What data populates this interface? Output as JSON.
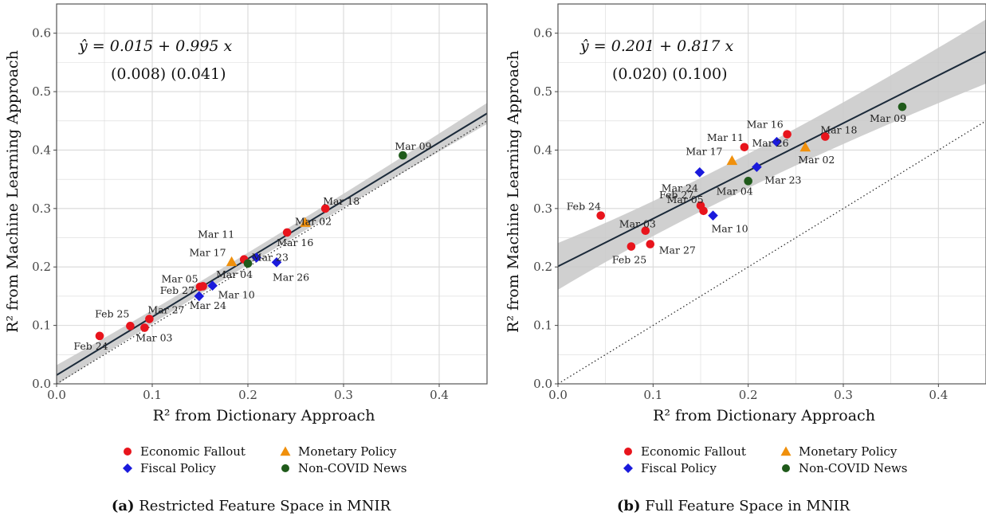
{
  "chart_data": [
    {
      "type": "scatter",
      "caption_tag": "(a)",
      "caption_text": "Restricted Feature Space in MNIR",
      "xlabel": "R² from Dictionary Approach",
      "ylabel": "R² from Machine Learning Approach",
      "xlim": [
        0,
        0.45
      ],
      "ylim": [
        0,
        0.65
      ],
      "xticks": [
        "0.0",
        "0.1",
        "0.2",
        "0.3",
        "0.4"
      ],
      "yticks": [
        "0.0",
        "0.1",
        "0.2",
        "0.3",
        "0.4",
        "0.5",
        "0.6"
      ],
      "equation": "ŷ = 0.015 + 0.995 x",
      "se": "(0.008)  (0.041)",
      "fit": {
        "intercept": 0.015,
        "slope": 0.995,
        "band_at_0": 0.017,
        "band_at_max": 0.018
      },
      "diagonal": true,
      "grid": true,
      "points": [
        {
          "label": "Feb 24",
          "x": 0.045,
          "y": 0.082,
          "group": "Economic Fallout"
        },
        {
          "label": "Feb 25",
          "x": 0.077,
          "y": 0.099,
          "group": "Economic Fallout"
        },
        {
          "label": "Mar 03",
          "x": 0.092,
          "y": 0.096,
          "group": "Economic Fallout"
        },
        {
          "label": "Mar 27",
          "x": 0.097,
          "y": 0.111,
          "group": "Economic Fallout"
        },
        {
          "label": "Mar 24",
          "x": 0.149,
          "y": 0.15,
          "group": "Fiscal Policy"
        },
        {
          "label": "Feb 27",
          "x": 0.15,
          "y": 0.166,
          "group": "Economic Fallout"
        },
        {
          "label": "Mar 05",
          "x": 0.153,
          "y": 0.167,
          "group": "Economic Fallout"
        },
        {
          "label": "Mar 10",
          "x": 0.163,
          "y": 0.168,
          "group": "Fiscal Policy"
        },
        {
          "label": "Mar 17",
          "x": 0.183,
          "y": 0.209,
          "group": "Monetary Policy"
        },
        {
          "label": "Mar 11",
          "x": 0.196,
          "y": 0.213,
          "group": "Economic Fallout"
        },
        {
          "label": "Mar 04",
          "x": 0.2,
          "y": 0.206,
          "group": "Non-COVID News"
        },
        {
          "label": "Mar 23",
          "x": 0.209,
          "y": 0.216,
          "group": "Fiscal Policy"
        },
        {
          "label": "Mar 26",
          "x": 0.23,
          "y": 0.208,
          "group": "Fiscal Policy"
        },
        {
          "label": "Mar 16",
          "x": 0.241,
          "y": 0.259,
          "group": "Economic Fallout"
        },
        {
          "label": "Mar 02",
          "x": 0.26,
          "y": 0.276,
          "group": "Monetary Policy"
        },
        {
          "label": "Mar 18",
          "x": 0.281,
          "y": 0.3,
          "group": "Economic Fallout"
        },
        {
          "label": "Mar 09",
          "x": 0.362,
          "y": 0.391,
          "group": "Non-COVID News"
        }
      ]
    },
    {
      "type": "scatter",
      "caption_tag": "(b)",
      "caption_text": "Full Feature Space in MNIR",
      "xlabel": "R² from Dictionary Approach",
      "ylabel": "R² from Machine Learning Approach",
      "xlim": [
        0,
        0.45
      ],
      "ylim": [
        0,
        0.65
      ],
      "xticks": [
        "0.0",
        "0.1",
        "0.2",
        "0.3",
        "0.4"
      ],
      "yticks": [
        "0.0",
        "0.1",
        "0.2",
        "0.3",
        "0.4",
        "0.5",
        "0.6"
      ],
      "equation": "ŷ = 0.201 + 0.817 x",
      "se": "(0.020)  (0.100)",
      "fit": {
        "intercept": 0.201,
        "slope": 0.817,
        "band_at_0": 0.04,
        "band_at_max": 0.055
      },
      "diagonal": true,
      "grid": true,
      "points": [
        {
          "label": "Feb 24",
          "x": 0.045,
          "y": 0.288,
          "group": "Economic Fallout"
        },
        {
          "label": "Feb 25",
          "x": 0.077,
          "y": 0.235,
          "group": "Economic Fallout"
        },
        {
          "label": "Mar 03",
          "x": 0.092,
          "y": 0.262,
          "group": "Economic Fallout"
        },
        {
          "label": "Mar 27",
          "x": 0.097,
          "y": 0.239,
          "group": "Economic Fallout"
        },
        {
          "label": "Mar 24",
          "x": 0.149,
          "y": 0.362,
          "group": "Fiscal Policy"
        },
        {
          "label": "Feb 27",
          "x": 0.15,
          "y": 0.305,
          "group": "Economic Fallout"
        },
        {
          "label": "Mar 05",
          "x": 0.153,
          "y": 0.296,
          "group": "Economic Fallout"
        },
        {
          "label": "Mar 10",
          "x": 0.163,
          "y": 0.288,
          "group": "Fiscal Policy"
        },
        {
          "label": "Mar 17",
          "x": 0.183,
          "y": 0.382,
          "group": "Monetary Policy"
        },
        {
          "label": "Mar 11",
          "x": 0.196,
          "y": 0.405,
          "group": "Economic Fallout"
        },
        {
          "label": "Mar 04",
          "x": 0.2,
          "y": 0.347,
          "group": "Non-COVID News"
        },
        {
          "label": "Mar 23",
          "x": 0.209,
          "y": 0.371,
          "group": "Fiscal Policy"
        },
        {
          "label": "Mar 26",
          "x": 0.23,
          "y": 0.414,
          "group": "Fiscal Policy"
        },
        {
          "label": "Mar 16",
          "x": 0.241,
          "y": 0.427,
          "group": "Economic Fallout"
        },
        {
          "label": "Mar 02",
          "x": 0.26,
          "y": 0.405,
          "group": "Monetary Policy"
        },
        {
          "label": "Mar 18",
          "x": 0.281,
          "y": 0.423,
          "group": "Economic Fallout"
        },
        {
          "label": "Mar 09",
          "x": 0.362,
          "y": 0.474,
          "group": "Non-COVID News"
        }
      ]
    }
  ],
  "legend": [
    {
      "name": "Economic Fallout",
      "shape": "circle",
      "color": "#e8141c"
    },
    {
      "name": "Monetary Policy",
      "shape": "triangle",
      "color": "#f0900c"
    },
    {
      "name": "Fiscal Policy",
      "shape": "diamond",
      "color": "#1a1adc"
    },
    {
      "name": "Non-COVID News",
      "shape": "circle",
      "color": "#1f5a1a"
    }
  ],
  "colors": {
    "panel_border": "#555555",
    "grid": "#d9d9d9",
    "fit_line": "#1b2a3a",
    "band": "#c8c8c8"
  }
}
